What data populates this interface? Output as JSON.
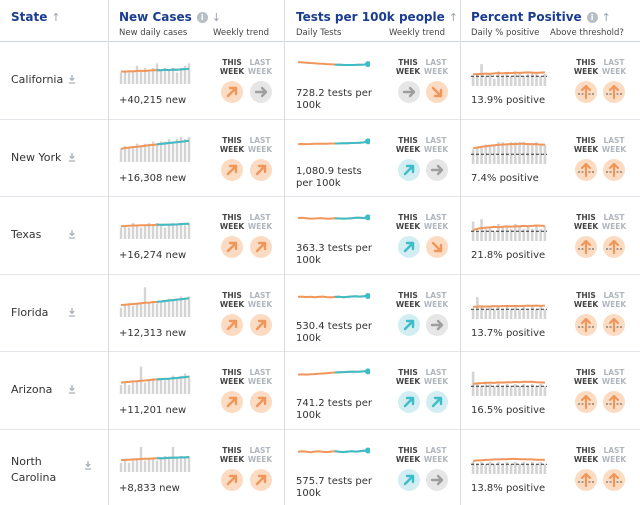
{
  "header": {
    "state": {
      "title": "State"
    },
    "cases": {
      "title": "New Cases",
      "sub1": "New daily cases",
      "sub2": "Weekly trend"
    },
    "tests": {
      "title": "Tests per 100k people",
      "sub1": "Daily Tests",
      "sub2": "Weekly trend"
    },
    "positive": {
      "title": "Percent Positive",
      "sub1": "Daily % positive",
      "sub2": "Above threshold?"
    }
  },
  "week_labels": {
    "this": "THIS WEEK",
    "last": "LAST WEEK"
  },
  "colors": {
    "orange": "#f0965a",
    "teal": "#3cbdc9",
    "gray_bar": "#d4d4d4",
    "gray_arrow": "#9e9e9e"
  },
  "rows": [
    {
      "state": "California",
      "cases_value": "+40,215 new",
      "tests_value": "728.2 tests per 100k",
      "positive_value": "13.9% positive",
      "cases_bars": [
        5,
        6,
        5,
        6,
        8,
        6,
        7,
        6,
        7,
        9,
        6,
        7,
        6,
        7,
        5,
        7,
        8,
        9
      ],
      "cases_line": [
        5.5,
        5.4,
        5.6,
        5.5,
        5.7,
        5.8,
        5.7,
        5.9,
        6.0,
        6.1,
        6.0,
        6.2,
        6.1,
        6.3,
        6.2,
        6.4,
        6.5,
        6.6
      ],
      "cases_trend": {
        "this": "up",
        "last": "flat"
      },
      "tests_line": [
        7.6,
        7.4,
        7.2,
        7.0,
        6.8,
        6.6,
        6.5,
        6.3,
        6.2,
        6.0,
        5.9,
        5.8,
        5.7,
        5.7,
        5.8,
        5.9,
        6.0,
        6.3
      ],
      "tests_trend": {
        "this": "flat",
        "last": "down"
      },
      "pos_bars": [
        4,
        5,
        9,
        4,
        5,
        3,
        6,
        4,
        5,
        4,
        6,
        5,
        4,
        5,
        6,
        5,
        4,
        5
      ],
      "pos_line": [
        4.8,
        4.9,
        5.0,
        5.1,
        5.0,
        5.2,
        5.3,
        5.2,
        5.4,
        5.3,
        5.5,
        5.4,
        5.5,
        5.6,
        5.5,
        5.4,
        5.5,
        5.6
      ],
      "threshold": {
        "this": "above",
        "last": "above"
      }
    },
    {
      "state": "New York",
      "cases_value": "+16,308 new",
      "tests_value": "1,080.9 tests per 100k",
      "positive_value": "7.4% positive",
      "cases_bars": [
        6,
        7,
        6,
        7,
        8,
        7,
        8,
        8,
        9,
        8,
        9,
        9,
        10,
        9,
        10,
        11,
        10,
        11
      ],
      "cases_line": [
        5.8,
        6.1,
        6.3,
        6.5,
        6.7,
        6.9,
        7.1,
        7.3,
        7.5,
        7.7,
        7.9,
        8.1,
        8.3,
        8.5,
        8.7,
        8.9,
        9.1,
        9.3
      ],
      "cases_trend": {
        "this": "up",
        "last": "up"
      },
      "tests_line": [
        5.0,
        5.1,
        5.0,
        5.1,
        5.2,
        5.2,
        5.3,
        5.3,
        5.4,
        5.4,
        5.5,
        5.6,
        5.6,
        5.7,
        5.8,
        5.9,
        6.1,
        6.8
      ],
      "tests_trend": {
        "this": "up-teal",
        "last": "flat"
      },
      "pos_bars": [
        6,
        7,
        7,
        8,
        8,
        8,
        9,
        9,
        8,
        9,
        9,
        9,
        9,
        8,
        8,
        9,
        8,
        8
      ],
      "pos_line": [
        6.5,
        6.8,
        7.1,
        7.3,
        7.5,
        7.7,
        7.9,
        8.0,
        8.1,
        8.2,
        8.2,
        8.3,
        8.3,
        8.2,
        8.2,
        8.1,
        8.0,
        8.0
      ],
      "threshold": {
        "this": "above",
        "last": "above"
      }
    },
    {
      "state": "Texas",
      "cases_value": "+16,274 new",
      "tests_value": "363.3 tests per 100k",
      "positive_value": "21.8% positive",
      "cases_bars": [
        5,
        6,
        5,
        7,
        6,
        5,
        6,
        7,
        6,
        7,
        6,
        5,
        6,
        7,
        6,
        7,
        6,
        7
      ],
      "cases_line": [
        5.6,
        5.7,
        5.8,
        5.9,
        5.9,
        6.0,
        6.0,
        6.1,
        6.1,
        6.2,
        6.2,
        6.2,
        6.3,
        6.3,
        6.4,
        6.5,
        6.6,
        6.7
      ],
      "cases_trend": {
        "this": "up",
        "last": "up"
      },
      "tests_line": [
        7.0,
        7.2,
        6.9,
        6.6,
        6.7,
        6.9,
        6.8,
        6.5,
        6.6,
        6.8,
        6.7,
        6.6,
        6.7,
        6.9,
        7.1,
        7.2,
        7.0,
        7.4
      ],
      "tests_trend": {
        "this": "up-teal",
        "last": "down"
      },
      "pos_bars": [
        8,
        4,
        9,
        5,
        6,
        4,
        7,
        6,
        6,
        5,
        7,
        6,
        5,
        6,
        5,
        6,
        5,
        6
      ],
      "pos_line": [
        4.5,
        5.0,
        5.3,
        5.5,
        5.6,
        5.8,
        5.7,
        5.9,
        6.0,
        5.9,
        6.1,
        6.0,
        6.2,
        6.1,
        6.2,
        6.4,
        6.3,
        6.2
      ],
      "threshold": {
        "this": "above",
        "last": "above"
      }
    },
    {
      "state": "Florida",
      "cases_value": "+12,313 new",
      "tests_value": "530.4 tests per 100k",
      "positive_value": "13.7% positive",
      "cases_bars": [
        4,
        5,
        6,
        5,
        6,
        6,
        13,
        6,
        7,
        6,
        7,
        7,
        8,
        7,
        8,
        9,
        8,
        9
      ],
      "cases_line": [
        5.2,
        5.4,
        5.5,
        5.7,
        5.8,
        6.0,
        6.2,
        6.3,
        6.5,
        6.6,
        6.8,
        7.0,
        7.2,
        7.4,
        7.6,
        7.8,
        8.0,
        8.2
      ],
      "cases_trend": {
        "this": "up",
        "last": "up"
      },
      "tests_line": [
        6.4,
        6.6,
        6.3,
        6.5,
        6.2,
        6.4,
        6.6,
        6.3,
        6.1,
        6.4,
        6.5,
        6.2,
        6.4,
        6.7,
        6.9,
        6.6,
        6.8,
        7.0
      ],
      "tests_trend": {
        "this": "up-teal",
        "last": "flat"
      },
      "pos_bars": [
        4,
        9,
        5,
        4,
        5,
        4,
        5,
        4,
        5,
        4,
        5,
        4,
        5,
        4,
        5,
        4,
        5,
        4
      ],
      "pos_line": [
        5.0,
        5.1,
        5.2,
        5.1,
        5.2,
        5.3,
        5.2,
        5.3,
        5.4,
        5.3,
        5.4,
        5.3,
        5.4,
        5.5,
        5.4,
        5.5,
        5.4,
        5.5
      ],
      "threshold": {
        "this": "above",
        "last": "above"
      }
    },
    {
      "state": "Arizona",
      "cases_value": "+11,201 new",
      "tests_value": "741.2 tests per 100k",
      "positive_value": "16.5% positive",
      "cases_bars": [
        4,
        5,
        4,
        5,
        6,
        12,
        5,
        6,
        7,
        6,
        7,
        6,
        7,
        8,
        7,
        8,
        9,
        8
      ],
      "cases_line": [
        5.0,
        5.2,
        5.3,
        5.5,
        5.6,
        5.8,
        5.9,
        6.1,
        6.2,
        6.4,
        6.5,
        6.6,
        6.7,
        6.9,
        7.0,
        7.2,
        7.4,
        7.6
      ],
      "cases_trend": {
        "this": "up",
        "last": "up"
      },
      "tests_line": [
        6.0,
        6.1,
        6.0,
        6.2,
        6.3,
        6.5,
        6.7,
        6.9,
        7.1,
        7.3,
        7.5,
        7.6,
        7.7,
        7.8,
        7.8,
        7.9,
        8.0,
        8.0
      ],
      "tests_trend": {
        "this": "up-teal",
        "last": "up-teal"
      },
      "pos_bars": [
        10,
        5,
        4,
        6,
        5,
        4,
        5,
        4,
        5,
        4,
        5,
        4,
        5,
        4,
        5,
        4,
        5,
        4
      ],
      "pos_line": [
        5.0,
        5.2,
        5.3,
        5.4,
        5.5,
        5.4,
        5.6,
        5.5,
        5.7,
        5.6,
        5.8,
        5.7,
        5.9,
        5.8,
        5.9,
        5.7,
        5.6,
        5.5
      ],
      "threshold": {
        "this": "above",
        "last": "above"
      }
    },
    {
      "state": "North Carolina",
      "cases_value": "+8,833 new",
      "tests_value": "575.7 tests per 100k",
      "positive_value": "13.8% positive",
      "cases_bars": [
        4,
        5,
        4,
        5,
        6,
        11,
        5,
        6,
        6,
        5,
        6,
        7,
        6,
        11,
        6,
        7,
        6,
        7
      ],
      "cases_line": [
        5.2,
        5.3,
        5.4,
        5.5,
        5.6,
        5.7,
        5.8,
        5.8,
        5.9,
        6.0,
        6.0,
        6.1,
        6.2,
        6.2,
        6.3,
        6.4,
        6.4,
        6.5
      ],
      "cases_trend": {
        "this": "up",
        "last": "up"
      },
      "tests_line": [
        6.4,
        6.8,
        6.5,
        6.2,
        6.6,
        6.9,
        6.5,
        6.3,
        6.6,
        6.8,
        6.5,
        6.3,
        6.6,
        6.8,
        6.6,
        6.9,
        7.1,
        7.3
      ],
      "tests_trend": {
        "this": "up-teal",
        "last": "flat"
      },
      "pos_bars": [
        5,
        4,
        5,
        4,
        5,
        4,
        5,
        4,
        5,
        4,
        5,
        4,
        5,
        4,
        5,
        4,
        5,
        4
      ],
      "pos_line": [
        5.4,
        5.6,
        5.7,
        5.8,
        5.9,
        6.0,
        6.0,
        6.1,
        6.1,
        6.2,
        6.2,
        6.1,
        6.1,
        6.0,
        6.0,
        5.9,
        5.9,
        5.8
      ],
      "threshold": {
        "this": "above",
        "last": "above"
      }
    }
  ]
}
